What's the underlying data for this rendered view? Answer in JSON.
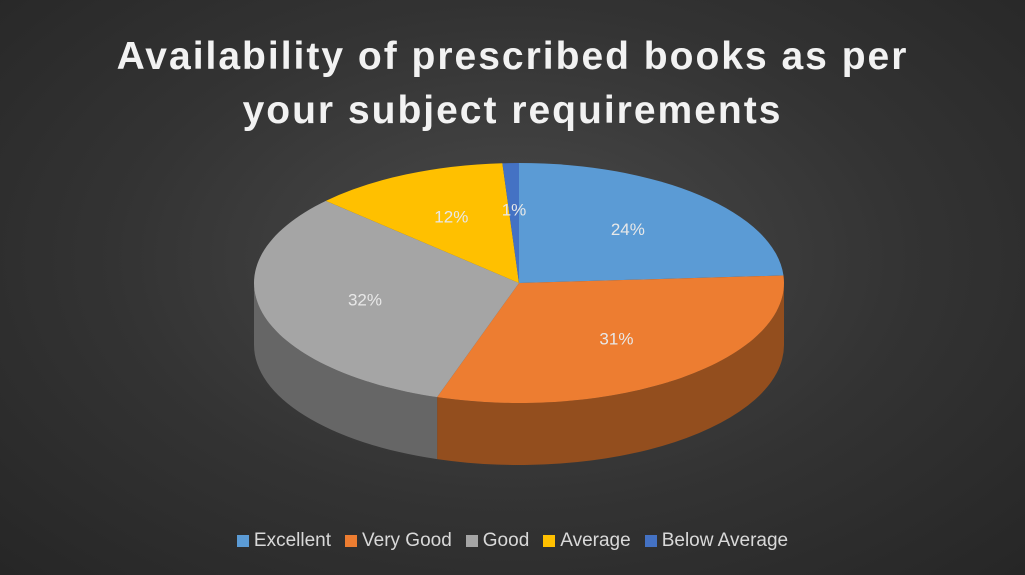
{
  "chart_data": {
    "type": "pie",
    "title": "Availability of prescribed books as per your subject requirements",
    "categories": [
      "Excellent",
      "Very Good",
      "Good",
      "Average",
      "Below Average"
    ],
    "values": [
      24,
      31,
      32,
      12,
      1
    ],
    "value_labels": [
      "24%",
      "31%",
      "32%",
      "12%",
      "1%"
    ],
    "colors": [
      "#5b9bd5",
      "#ed7d31",
      "#a5a5a5",
      "#ffc000",
      "#4472c4"
    ],
    "legend": "bottom"
  }
}
